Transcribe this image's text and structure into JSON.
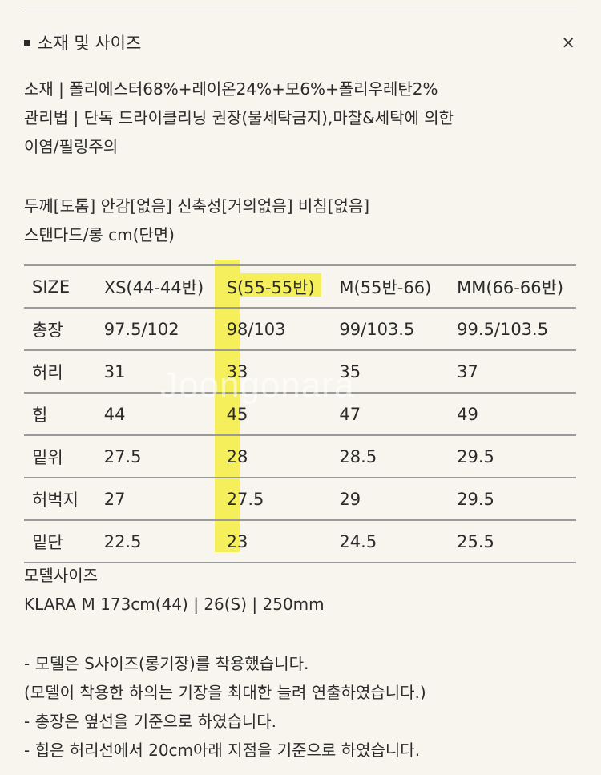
{
  "section": {
    "title": "소재 및 사이즈",
    "close_label": "×"
  },
  "material": {
    "lines": [
      "소재 | 폴리에스터68%+레이온24%+모6%+폴리우레탄2%",
      "관리법 | 단독 드라이클리닝 권장(물세탁금지),마찰&세탁에 의한",
      "이염/필링주의"
    ]
  },
  "properties": {
    "lines": [
      "두께[도톰] 안감[없음] 신축성[거의없음] 비침[없음]",
      "스탠다드/롱 cm(단면)"
    ]
  },
  "size_table": {
    "headers": [
      "SIZE",
      "XS(44-44반)",
      "S(55-55반)",
      "M(55반-66)",
      "MM(66-66반)"
    ],
    "rows": [
      [
        "총장",
        "97.5/102",
        "98/103",
        "99/103.5",
        "99.5/103.5"
      ],
      [
        "허리",
        "31",
        "33",
        "35",
        "37"
      ],
      [
        "힙",
        "44",
        "45",
        "47",
        "49"
      ],
      [
        "밑위",
        "27.5",
        "28",
        "28.5",
        "29.5"
      ],
      [
        "허벅지",
        "27",
        "27.5",
        "29",
        "29.5"
      ],
      [
        "밑단",
        "22.5",
        "23",
        "24.5",
        "25.5"
      ]
    ],
    "highlight_color": "#f3ee4a"
  },
  "model": {
    "lines": [
      "모델사이즈",
      "KLARA M 173cm(44) | 26(S) | 250mm"
    ]
  },
  "notes": {
    "lines": [
      "- 모델은 S사이즈(롱기장)를 착용했습니다.",
      "(모델이 착용한 하의는 기장을 최대한 늘려 연출하였습니다.)",
      "- 총장은 옆선을 기준으로 하였습니다.",
      "- 힙은 허리선에서 20cm아래 지점을 기준으로 하였습니다."
    ]
  },
  "watermark": "Joongonara"
}
